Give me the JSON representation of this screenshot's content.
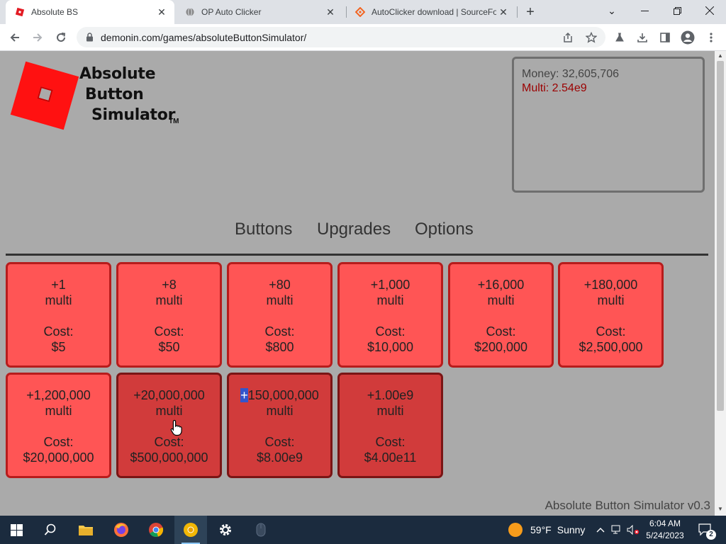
{
  "browser": {
    "tabs": [
      {
        "title": "Absolute BS",
        "active": true,
        "favicon": "roblox-favicon"
      },
      {
        "title": "OP Auto Clicker",
        "active": false,
        "favicon": "globe-favicon"
      },
      {
        "title": "AutoClicker download | SourceFo",
        "active": false,
        "favicon": "sourceforge-favicon"
      }
    ],
    "url": "demonin.com/games/absoluteButtonSimulator/"
  },
  "game": {
    "logo": {
      "line1": "Absolute",
      "line2": "Button",
      "line3": "Simulator",
      "tm": "TM"
    },
    "money_label": "Money: 32,605,706",
    "multi_label": "Multi: 2.54e9",
    "nav": {
      "buttons": "Buttons",
      "upgrades": "Upgrades",
      "options": "Options"
    },
    "cards": [
      {
        "gain": "+1",
        "unit": "multi",
        "cost_label": "Cost:",
        "cost": "$5",
        "affordable": true
      },
      {
        "gain": "+8",
        "unit": "multi",
        "cost_label": "Cost:",
        "cost": "$50",
        "affordable": true
      },
      {
        "gain": "+80",
        "unit": "multi",
        "cost_label": "Cost:",
        "cost": "$800",
        "affordable": true
      },
      {
        "gain": "+1,000",
        "unit": "multi",
        "cost_label": "Cost:",
        "cost": "$10,000",
        "affordable": true
      },
      {
        "gain": "+16,000",
        "unit": "multi",
        "cost_label": "Cost:",
        "cost": "$200,000",
        "affordable": true
      },
      {
        "gain": "+180,000",
        "unit": "multi",
        "cost_label": "Cost:",
        "cost": "$2,500,000",
        "affordable": true
      },
      {
        "gain": "+1,200,000",
        "unit": "multi",
        "cost_label": "Cost:",
        "cost": "$20,000,000",
        "affordable": true
      },
      {
        "gain": "+20,000,000",
        "unit": "multi",
        "cost_label": "Cost:",
        "cost": "$500,000,000",
        "affordable": false
      },
      {
        "gain_sel": "+",
        "gain_rest": "150,000,000",
        "unit": "multi",
        "cost_label": "Cost:",
        "cost": "$8.00e9",
        "affordable": false
      },
      {
        "gain": "+1.00e9",
        "unit": "multi",
        "cost_label": "Cost:",
        "cost": "$4.00e11",
        "affordable": false
      }
    ],
    "version": "Absolute Button Simulator v0.3"
  },
  "taskbar": {
    "weather_temp": "59°F",
    "weather_desc": "Sunny",
    "time": "6:04 AM",
    "date": "5/24/2023",
    "notification_count": "2"
  },
  "colors": {
    "card_affordable": "#ff5555",
    "card_locked": "#d13b3b",
    "card_border": "#b71c1c",
    "multi_text": "#9b0000",
    "page_bg": "#aaaaaa"
  }
}
